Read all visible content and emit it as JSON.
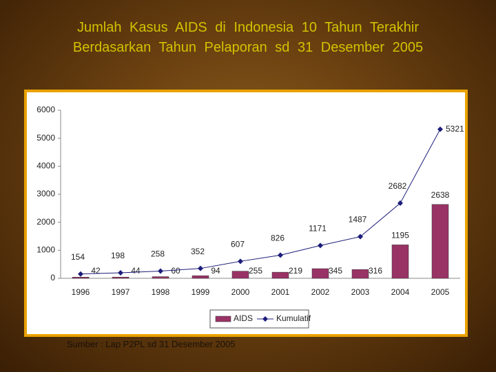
{
  "title": "Jumlah Kasus AIDS di Indonesia 10 Tahun Terakhir Berdasarkan Tahun Pelaporan sd 31 Desember 2005",
  "source": "Sumber : Lap P2PL sd 31 Desember 2005",
  "chart_data": {
    "type": "bar_line",
    "categories": [
      "1996",
      "1997",
      "1998",
      "1999",
      "2000",
      "2001",
      "2002",
      "2003",
      "2004",
      "2005"
    ],
    "series": [
      {
        "name": "AIDS",
        "type": "bar",
        "color": "#993366",
        "values": [
          42,
          44,
          60,
          94,
          255,
          219,
          345,
          316,
          1195,
          2638
        ]
      },
      {
        "name": "Kumulatif",
        "type": "line",
        "color": "#1c1c7a",
        "values": [
          154,
          198,
          258,
          352,
          607,
          826,
          1171,
          1487,
          2682,
          5321
        ]
      }
    ],
    "ylim": [
      0,
      6000
    ],
    "yticks": [
      0,
      1000,
      2000,
      3000,
      4000,
      5000,
      6000
    ]
  }
}
